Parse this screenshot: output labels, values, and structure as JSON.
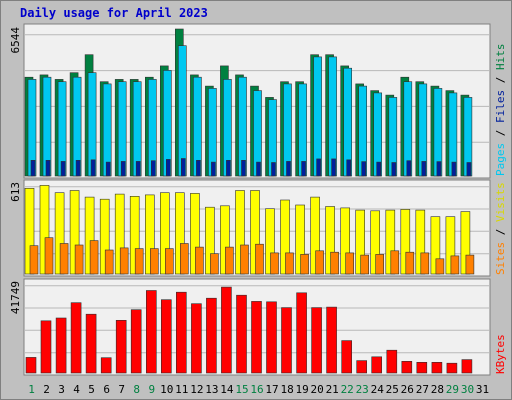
{
  "title": "Daily usage for April 2023",
  "colors": {
    "hits": "#008040",
    "files": "#00c8f0",
    "pages": "#00209c",
    "visits": "#ffff00",
    "sites": "#ff8000",
    "kbytes": "#ff0000",
    "weekend_day": "#008040",
    "weekday": "#000000"
  },
  "legend": {
    "pages": "Pages",
    "files": "Files",
    "hits": "Hits",
    "sites": "Sites",
    "visits": "Visits",
    "kbytes": "KBytes",
    "separator": " / "
  },
  "chart_data": [
    {
      "type": "bar",
      "panel": "hits-files-pages",
      "categories": [
        "1",
        "2",
        "3",
        "4",
        "5",
        "6",
        "7",
        "8",
        "9",
        "10",
        "11",
        "12",
        "13",
        "14",
        "15",
        "16",
        "17",
        "18",
        "19",
        "20",
        "21",
        "22",
        "23",
        "24",
        "25",
        "26",
        "27",
        "28",
        "29",
        "30",
        "31"
      ],
      "ylim": [
        0,
        6544
      ],
      "max_label": "6544",
      "series": [
        {
          "name": "Hits",
          "values": [
            4400,
            4500,
            4300,
            4600,
            5400,
            4200,
            4300,
            4300,
            4400,
            4900,
            6544,
            4500,
            4000,
            4900,
            4500,
            4000,
            3500,
            4200,
            4200,
            5400,
            5400,
            4900,
            4100,
            3800,
            3600,
            4400,
            4200,
            4000,
            3800,
            3600,
            0
          ]
        },
        {
          "name": "Files",
          "values": [
            4300,
            4400,
            4200,
            4400,
            4600,
            4100,
            4200,
            4200,
            4300,
            4700,
            5800,
            4400,
            3900,
            4300,
            4400,
            3800,
            3400,
            4100,
            4100,
            5300,
            5300,
            4800,
            4000,
            3700,
            3500,
            4200,
            4100,
            3900,
            3700,
            3500,
            0
          ]
        },
        {
          "name": "Pages",
          "values": [
            700,
            700,
            650,
            700,
            720,
            620,
            650,
            650,
            680,
            740,
            780,
            700,
            620,
            700,
            700,
            620,
            600,
            650,
            650,
            760,
            760,
            720,
            640,
            620,
            600,
            680,
            650,
            640,
            620,
            600,
            0
          ]
        }
      ]
    },
    {
      "type": "bar",
      "panel": "visits-sites",
      "categories": [
        "1",
        "2",
        "3",
        "4",
        "5",
        "6",
        "7",
        "8",
        "9",
        "10",
        "11",
        "12",
        "13",
        "14",
        "15",
        "16",
        "17",
        "18",
        "19",
        "20",
        "21",
        "22",
        "23",
        "24",
        "25",
        "26",
        "27",
        "28",
        "29",
        "30",
        "31"
      ],
      "ylim": [
        0,
        613
      ],
      "max_label": "613",
      "series": [
        {
          "name": "Visits",
          "values": [
            590,
            610,
            560,
            575,
            530,
            515,
            550,
            535,
            545,
            560,
            560,
            555,
            460,
            470,
            575,
            575,
            450,
            510,
            475,
            530,
            465,
            455,
            440,
            435,
            440,
            445,
            440,
            395,
            395,
            430,
            0
          ]
        },
        {
          "name": "Sites",
          "values": [
            195,
            250,
            210,
            200,
            230,
            165,
            180,
            175,
            175,
            175,
            210,
            185,
            140,
            185,
            200,
            205,
            145,
            145,
            135,
            160,
            150,
            145,
            130,
            135,
            160,
            150,
            145,
            105,
            125,
            130,
            0
          ]
        }
      ]
    },
    {
      "type": "bar",
      "panel": "kbytes",
      "categories": [
        "1",
        "2",
        "3",
        "4",
        "5",
        "6",
        "7",
        "8",
        "9",
        "10",
        "11",
        "12",
        "13",
        "14",
        "15",
        "16",
        "17",
        "18",
        "19",
        "20",
        "21",
        "22",
        "23",
        "24",
        "25",
        "26",
        "27",
        "28",
        "29",
        "30",
        "31"
      ],
      "ylim": [
        0,
        41749
      ],
      "max_label": "41749",
      "series": [
        {
          "name": "KBytes",
          "values": [
            7300,
            24500,
            25800,
            33000,
            27600,
            7200,
            24700,
            29700,
            38700,
            34400,
            37900,
            32500,
            35100,
            40300,
            36500,
            33600,
            33400,
            30700,
            37600,
            30700,
            30900,
            15200,
            5800,
            7600,
            10700,
            5500,
            5000,
            5000,
            4600,
            6300,
            0
          ]
        }
      ]
    }
  ]
}
